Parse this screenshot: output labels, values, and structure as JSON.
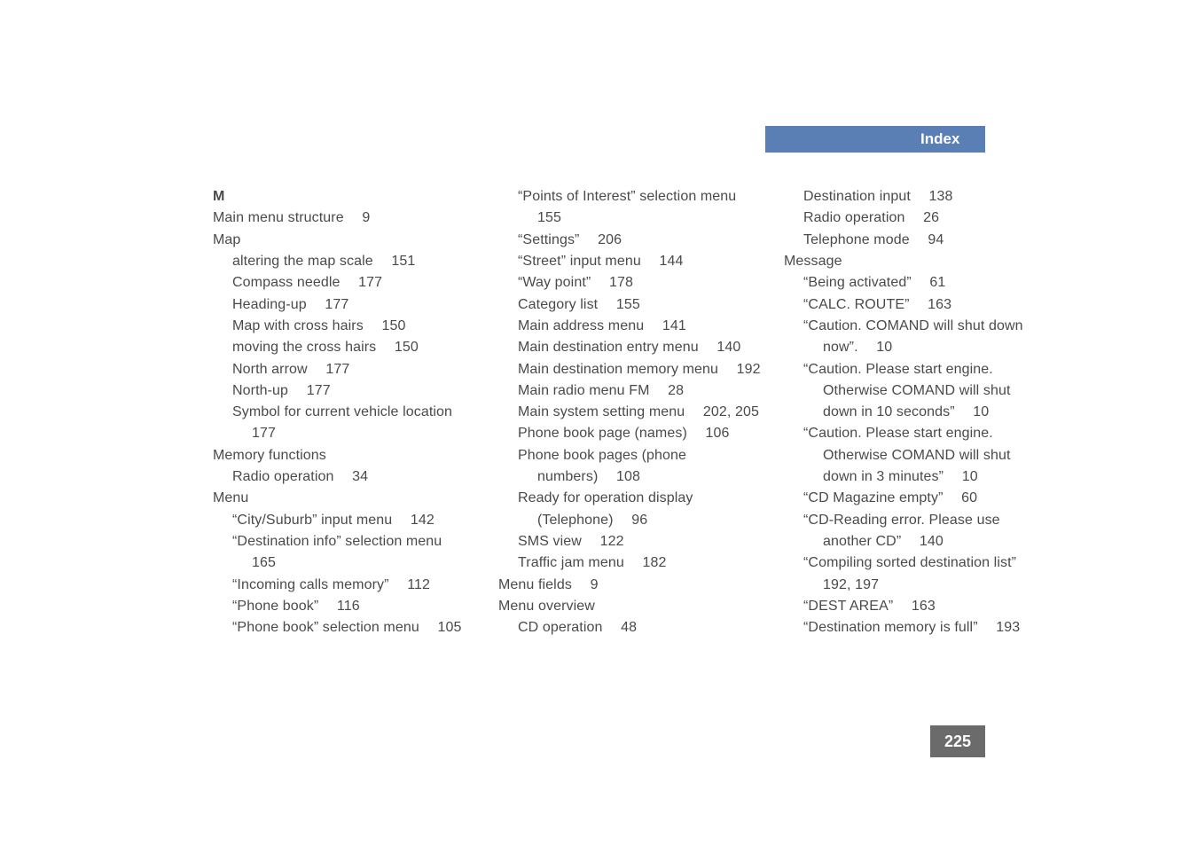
{
  "header": {
    "title": "Index"
  },
  "pageNumber": "225",
  "col1": {
    "sectionLetter": "M",
    "lines": [
      {
        "cls": "",
        "text": "Main menu structure  9"
      },
      {
        "cls": "",
        "text": "Map"
      },
      {
        "cls": "ind1",
        "text": "altering the map scale  151"
      },
      {
        "cls": "ind1",
        "text": "Compass needle  177"
      },
      {
        "cls": "ind1",
        "text": "Heading-up  177"
      },
      {
        "cls": "ind1",
        "text": "Map with cross hairs  150"
      },
      {
        "cls": "ind1",
        "text": "moving the cross hairs  150"
      },
      {
        "cls": "ind1",
        "text": "North arrow  177"
      },
      {
        "cls": "ind1",
        "text": "North-up  177"
      },
      {
        "cls": "ind2",
        "text": "Symbol for current vehicle location  177"
      },
      {
        "cls": "",
        "text": "Memory functions"
      },
      {
        "cls": "ind1",
        "text": "Radio operation  34"
      },
      {
        "cls": "",
        "text": "Menu"
      },
      {
        "cls": "ind1",
        "text": "“City/Suburb” input menu  142"
      },
      {
        "cls": "ind2",
        "text": "“Destination info” selection menu  165"
      },
      {
        "cls": "ind1",
        "text": "“Incoming calls memory”  112"
      },
      {
        "cls": "ind1",
        "text": "“Phone book”  116"
      },
      {
        "cls": "ind1",
        "text": "“Phone book” selection menu  105"
      }
    ]
  },
  "col2": {
    "lines": [
      {
        "cls": "ind2",
        "text": "“Points of Interest” selection menu  155"
      },
      {
        "cls": "ind1",
        "text": "“Settings”  206"
      },
      {
        "cls": "ind1",
        "text": "“Street” input menu  144"
      },
      {
        "cls": "ind1",
        "text": "“Way point”  178"
      },
      {
        "cls": "ind1",
        "text": "Category list  155"
      },
      {
        "cls": "ind1",
        "text": "Main address menu  141"
      },
      {
        "cls": "ind1",
        "text": "Main destination entry menu  140"
      },
      {
        "cls": "ind1",
        "text": "Main destination memory menu  192"
      },
      {
        "cls": "ind1",
        "text": "Main radio menu FM  28"
      },
      {
        "cls": "ind1",
        "text": "Main system setting menu  202, 205"
      },
      {
        "cls": "ind1",
        "text": "Phone book page (names)  106"
      },
      {
        "cls": "ind2",
        "text": "Phone book pages (phone numbers)  108"
      },
      {
        "cls": "ind2",
        "text": "Ready for operation display (Telephone)  96"
      },
      {
        "cls": "ind1",
        "text": "SMS view  122"
      },
      {
        "cls": "ind1",
        "text": "Traffic jam menu  182"
      },
      {
        "cls": "",
        "text": "Menu fields  9"
      },
      {
        "cls": "",
        "text": "Menu overview"
      },
      {
        "cls": "ind1",
        "text": "CD operation  48"
      }
    ]
  },
  "col3": {
    "lines": [
      {
        "cls": "ind1",
        "text": "Destination input  138"
      },
      {
        "cls": "ind1",
        "text": "Radio operation  26"
      },
      {
        "cls": "ind1",
        "text": "Telephone mode  94"
      },
      {
        "cls": "",
        "text": "Message"
      },
      {
        "cls": "ind1",
        "text": "“Being activated”  61"
      },
      {
        "cls": "ind1",
        "text": "“CALC. ROUTE”  163"
      },
      {
        "cls": "ind2",
        "text": "“Caution. COMAND will shut down now”.  10"
      },
      {
        "cls": "ind2",
        "text": "“Caution. Please start engine. Otherwise COMAND will shut down in 10 seconds”  10"
      },
      {
        "cls": "ind2",
        "text": "“Caution. Please start engine. Otherwise COMAND will shut down in 3 minutes”  10"
      },
      {
        "cls": "ind1",
        "text": "“CD Magazine empty”  60"
      },
      {
        "cls": "ind2",
        "text": "“CD-Reading error. Please use another CD”  140"
      },
      {
        "cls": "ind2",
        "text": "“Compiling sorted destination list”  192, 197"
      },
      {
        "cls": "ind1",
        "text": "“DEST AREA”  163"
      },
      {
        "cls": "ind1",
        "text": "“Destination memory is full”  193"
      }
    ]
  },
  "style": {
    "headerBg": "#5a7fb5",
    "headerText": "#ffffff",
    "bodyText": "#4a4a4a",
    "pageNumBg": "#6b6b6b",
    "fontSizeBody": 16,
    "fontSizeHeader": 17,
    "fontSizePageNum": 18
  }
}
